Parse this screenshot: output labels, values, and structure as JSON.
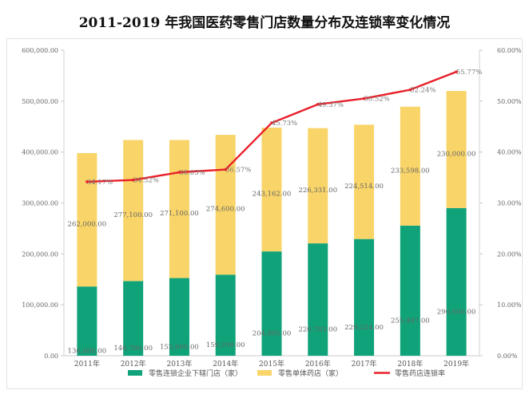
{
  "title": "2011-2019 年我国医药零售门店数量分布及连锁率变化情况",
  "chart_data": {
    "type": "bar",
    "stacked": true,
    "categories": [
      "2011年",
      "2012年",
      "2013年",
      "2014年",
      "2015年",
      "2016年",
      "2017年",
      "2018年",
      "2019年"
    ],
    "series": [
      {
        "name": "零售连锁企业下辖门店（家）",
        "color": "#10a37a",
        "values": [
          136000,
          146700,
          152600,
          159200,
          204895,
          220703,
          229224,
          255487,
          290000
        ],
        "labels": [
          "136,000.00",
          "146,700.00",
          "152,600.00",
          "159,200.00",
          "204,895.00",
          "220,703.00",
          "229,224.00",
          "255,487.00",
          "290,000.00"
        ]
      },
      {
        "name": "零售单体药店（家）",
        "color": "#f8d469",
        "values": [
          262000,
          277100,
          271100,
          274600,
          243162,
          226331,
          224514,
          233598,
          230000
        ],
        "labels": [
          "262,000.00",
          "277,100.00",
          "271,100.00",
          "274,600.00",
          "243,162.00",
          "226,331.00",
          "224,514.00",
          "233,598.00",
          "230,000.00"
        ]
      }
    ],
    "line": {
      "name": "零售药店连锁率",
      "color": "#e8202a",
      "values": [
        34.17,
        34.52,
        36.03,
        36.57,
        45.73,
        49.37,
        50.52,
        52.24,
        55.77
      ],
      "labels": [
        "34.17%",
        "34.52%",
        "36.03%",
        "36.57%",
        "45.73%",
        "49.37%",
        "50.52%",
        "52.24%",
        "55.77%"
      ]
    },
    "y_left": {
      "ylim": [
        0,
        600000
      ],
      "ticks": [
        "0.00",
        "100,000.00",
        "200,000.00",
        "300,000.00",
        "400,000.00",
        "500,000.00",
        "600,000.00"
      ]
    },
    "y_right": {
      "ylim": [
        0,
        60
      ],
      "ticks": [
        "0.00%",
        "10.00%",
        "20.00%",
        "30.00%",
        "40.00%",
        "50.00%",
        "60.00%"
      ]
    },
    "grid": false,
    "legend": "bottom"
  }
}
